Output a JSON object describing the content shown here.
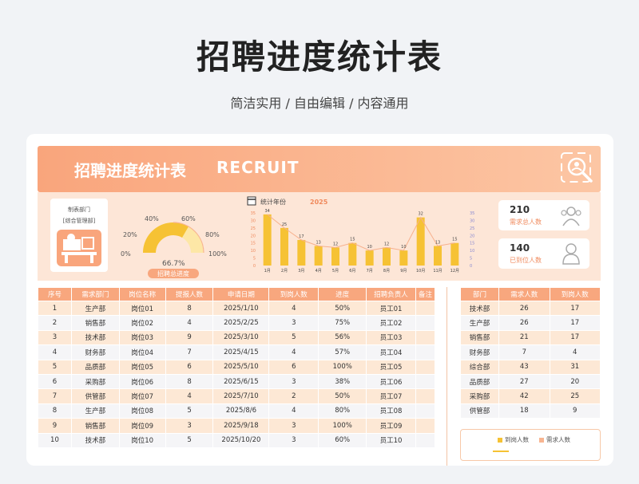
{
  "header": {
    "title": "招聘进度统计表",
    "subtitle": "简洁实用 / 自由编辑 / 内容通用"
  },
  "banner": {
    "title": "招聘进度统计表",
    "english": "RECRUIT",
    "icon": "search-person-icon"
  },
  "dept_box": {
    "line1": "制表部门",
    "line2": "[综合管理部]",
    "icon": "office-desk-icon"
  },
  "gauge": {
    "ticks": [
      "0%",
      "20%",
      "40%",
      "60%",
      "80%",
      "100%"
    ],
    "value_label": "66.7%",
    "value": 0.667,
    "caption": "招聘总进度"
  },
  "minichart": {
    "label": "统计年份",
    "year": "2025",
    "icon": "calendar-icon",
    "colors": {
      "bar": "#f6c234",
      "line": "#f7b08c",
      "label": "#f08a5d"
    }
  },
  "chart_data": {
    "type": "bar",
    "categories": [
      "1月",
      "2月",
      "3月",
      "4月",
      "5月",
      "6月",
      "7月",
      "8月",
      "9月",
      "10月",
      "11月",
      "12月"
    ],
    "values": [
      34,
      25,
      17,
      13,
      12,
      15,
      10,
      12,
      10,
      32,
      13,
      15
    ],
    "yticks": [
      "35",
      "30",
      "25",
      "20",
      "15",
      "10",
      "5",
      "0"
    ],
    "y2ticks": [
      "35",
      "30",
      "25",
      "20",
      "15",
      "10",
      "5",
      "0"
    ],
    "ylim": [
      0,
      35
    ]
  },
  "kpis": [
    {
      "value": "210",
      "label": "需求总人数",
      "icon": "group-person-icon"
    },
    {
      "value": "140",
      "label": "已到位人数",
      "icon": "person-icon"
    }
  ],
  "table": {
    "headers": [
      "序号",
      "需求部门",
      "岗位名称",
      "提报人数",
      "申请日期",
      "到岗人数",
      "进度",
      "招聘负责人",
      "备注"
    ],
    "rows": [
      [
        "1",
        "生产部",
        "岗位01",
        "8",
        "2025/1/10",
        "4",
        "50%",
        "员工01",
        ""
      ],
      [
        "2",
        "销售部",
        "岗位02",
        "4",
        "2025/2/25",
        "3",
        "75%",
        "员工02",
        ""
      ],
      [
        "3",
        "技术部",
        "岗位03",
        "9",
        "2025/3/10",
        "5",
        "56%",
        "员工03",
        ""
      ],
      [
        "4",
        "财务部",
        "岗位04",
        "7",
        "2025/4/15",
        "4",
        "57%",
        "员工04",
        ""
      ],
      [
        "5",
        "品质部",
        "岗位05",
        "6",
        "2025/5/10",
        "6",
        "100%",
        "员工05",
        ""
      ],
      [
        "6",
        "采购部",
        "岗位06",
        "8",
        "2025/6/15",
        "3",
        "38%",
        "员工06",
        ""
      ],
      [
        "7",
        "供管部",
        "岗位07",
        "4",
        "2025/7/10",
        "2",
        "50%",
        "员工07",
        ""
      ],
      [
        "8",
        "生产部",
        "岗位08",
        "5",
        "2025/8/6",
        "4",
        "80%",
        "员工08",
        ""
      ],
      [
        "9",
        "销售部",
        "岗位09",
        "3",
        "2025/9/18",
        "3",
        "100%",
        "员工09",
        ""
      ],
      [
        "10",
        "技术部",
        "岗位10",
        "5",
        "2025/10/20",
        "3",
        "60%",
        "员工10",
        ""
      ]
    ]
  },
  "side_table": {
    "headers": [
      "部门",
      "需求人数",
      "到岗人数"
    ],
    "rows": [
      [
        "技术部",
        "26",
        "17"
      ],
      [
        "生产部",
        "26",
        "17"
      ],
      [
        "销售部",
        "21",
        "17"
      ],
      [
        "财务部",
        "7",
        "4"
      ],
      [
        "综合部",
        "43",
        "31"
      ],
      [
        "品质部",
        "27",
        "20"
      ],
      [
        "采购部",
        "42",
        "25"
      ],
      [
        "供管部",
        "18",
        "9"
      ]
    ]
  },
  "side_legend": {
    "item1": "到岗人数",
    "item2": "需求人数",
    "color1": "#f6c234",
    "color2": "#f8b591"
  },
  "colors": {
    "accent": "#f8a77e",
    "banner": "#f9a57c",
    "gauge": "#f6c234"
  }
}
